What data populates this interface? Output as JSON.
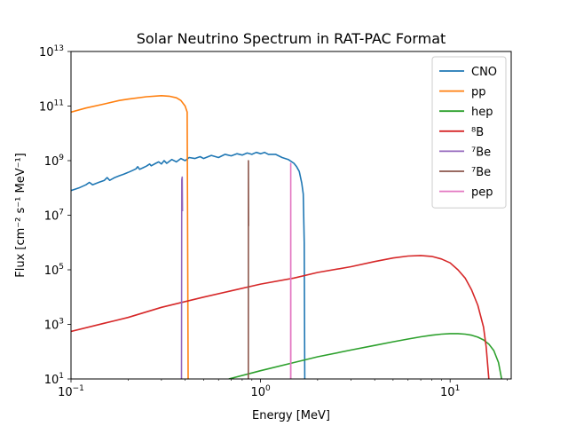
{
  "chart_data": {
    "type": "line",
    "title": "Solar Neutrino Spectrum in RAT-PAC Format",
    "xlabel": "Energy [MeV]",
    "ylabel": "Flux [cm⁻² s⁻¹ MeV⁻¹]",
    "xscale": "log",
    "yscale": "log",
    "xlim": [
      0.1,
      21
    ],
    "ylim": [
      10,
      10000000000000.0
    ],
    "x_ticks": [
      {
        "value": 0.1,
        "base": "10",
        "exp": "−1"
      },
      {
        "value": 1,
        "base": "10",
        "exp": "0"
      },
      {
        "value": 10,
        "base": "10",
        "exp": "1"
      }
    ],
    "y_ticks": [
      {
        "value": 10,
        "base": "10",
        "exp": "1"
      },
      {
        "value": 1000,
        "base": "10",
        "exp": "3"
      },
      {
        "value": 100000,
        "base": "10",
        "exp": "5"
      },
      {
        "value": 10000000,
        "base": "10",
        "exp": "7"
      },
      {
        "value": 1000000000,
        "base": "10",
        "exp": "9"
      },
      {
        "value": 100000000000,
        "base": "10",
        "exp": "11"
      },
      {
        "value": 10000000000000,
        "base": "10",
        "exp": "13"
      }
    ],
    "grid": false,
    "legend_position": "top-right",
    "series": [
      {
        "name": "CNO",
        "color": "#1f77b4",
        "points": [
          [
            0.1,
            80000000.0
          ],
          [
            0.11,
            100000000.0
          ],
          [
            0.12,
            130000000.0
          ],
          [
            0.125,
            160000000.0
          ],
          [
            0.13,
            130000000.0
          ],
          [
            0.14,
            160000000.0
          ],
          [
            0.15,
            190000000.0
          ],
          [
            0.155,
            240000000.0
          ],
          [
            0.16,
            190000000.0
          ],
          [
            0.17,
            240000000.0
          ],
          [
            0.18,
            280000000.0
          ],
          [
            0.19,
            320000000.0
          ],
          [
            0.2,
            370000000.0
          ],
          [
            0.21,
            430000000.0
          ],
          [
            0.22,
            500000000.0
          ],
          [
            0.225,
            600000000.0
          ],
          [
            0.23,
            480000000.0
          ],
          [
            0.24,
            550000000.0
          ],
          [
            0.25,
            630000000.0
          ],
          [
            0.26,
            750000000.0
          ],
          [
            0.265,
            650000000.0
          ],
          [
            0.28,
            800000000.0
          ],
          [
            0.29,
            900000000.0
          ],
          [
            0.3,
            750000000.0
          ],
          [
            0.31,
            1000000000.0
          ],
          [
            0.32,
            800000000.0
          ],
          [
            0.34,
            1100000000.0
          ],
          [
            0.36,
            900000000.0
          ],
          [
            0.38,
            1200000000.0
          ],
          [
            0.4,
            1000000000.0
          ],
          [
            0.42,
            1300000000.0
          ],
          [
            0.45,
            1200000000.0
          ],
          [
            0.48,
            1400000000.0
          ],
          [
            0.5,
            1200000000.0
          ],
          [
            0.55,
            1550000000.0
          ],
          [
            0.6,
            1300000000.0
          ],
          [
            0.65,
            1700000000.0
          ],
          [
            0.7,
            1500000000.0
          ],
          [
            0.75,
            1800000000.0
          ],
          [
            0.8,
            1600000000.0
          ],
          [
            0.85,
            1900000000.0
          ],
          [
            0.9,
            1700000000.0
          ],
          [
            0.95,
            2000000000.0
          ],
          [
            1.0,
            1800000000.0
          ],
          [
            1.05,
            2000000000.0
          ],
          [
            1.1,
            1700000000.0
          ],
          [
            1.2,
            1700000000.0
          ],
          [
            1.3,
            1300000000.0
          ],
          [
            1.4,
            1100000000.0
          ],
          [
            1.5,
            800000000.0
          ],
          [
            1.55,
            600000000.0
          ],
          [
            1.6,
            400000000.0
          ],
          [
            1.65,
            150000000.0
          ],
          [
            1.68,
            60000000.0
          ],
          [
            1.7,
            1000000.0
          ],
          [
            1.71,
            10
          ]
        ]
      },
      {
        "name": "pp",
        "color": "#ff7f0e",
        "points": [
          [
            0.1,
            60000000000.0
          ],
          [
            0.12,
            85000000000.0
          ],
          [
            0.15,
            120000000000.0
          ],
          [
            0.18,
            160000000000.0
          ],
          [
            0.2,
            180000000000.0
          ],
          [
            0.25,
            220000000000.0
          ],
          [
            0.3,
            240000000000.0
          ],
          [
            0.33,
            230000000000.0
          ],
          [
            0.36,
            200000000000.0
          ],
          [
            0.38,
            160000000000.0
          ],
          [
            0.4,
            100000000000.0
          ],
          [
            0.41,
            60000000000.0
          ],
          [
            0.415,
            10
          ]
        ]
      },
      {
        "name": "hep",
        "color": "#2ca02c",
        "points": [
          [
            0.68,
            10
          ],
          [
            1,
            20
          ],
          [
            1.5,
            40
          ],
          [
            2,
            65
          ],
          [
            3,
            115
          ],
          [
            4,
            170
          ],
          [
            5,
            230
          ],
          [
            6,
            290
          ],
          [
            7,
            350
          ],
          [
            8,
            400
          ],
          [
            9,
            440
          ],
          [
            10,
            460
          ],
          [
            11,
            460
          ],
          [
            12,
            440
          ],
          [
            13,
            400
          ],
          [
            14,
            340
          ],
          [
            15,
            270
          ],
          [
            16,
            190
          ],
          [
            17,
            110
          ],
          [
            18,
            40
          ],
          [
            18.7,
            10
          ]
        ]
      },
      {
        "name": "⁸B",
        "color": "#d62728",
        "points": [
          [
            0.1,
            550
          ],
          [
            0.15,
            1100
          ],
          [
            0.2,
            1800
          ],
          [
            0.3,
            4200
          ],
          [
            0.5,
            10000.0
          ],
          [
            0.7,
            17000.0
          ],
          [
            1,
            30000.0
          ],
          [
            1.5,
            50000.0
          ],
          [
            2,
            80000.0
          ],
          [
            3,
            130000.0
          ],
          [
            4,
            200000.0
          ],
          [
            5,
            270000.0
          ],
          [
            6,
            320000.0
          ],
          [
            7,
            335000.0
          ],
          [
            8,
            310000.0
          ],
          [
            9,
            250000.0
          ],
          [
            10,
            180000.0
          ],
          [
            11,
            100000.0
          ],
          [
            12,
            50000.0
          ],
          [
            13,
            18000.0
          ],
          [
            14,
            5000
          ],
          [
            15,
            800
          ],
          [
            15.5,
            150
          ],
          [
            16,
            10
          ]
        ]
      },
      {
        "name": "⁷Be",
        "color": "#9467bd",
        "points": [
          [
            0.3828,
            10
          ],
          [
            0.3838,
            200000000.0
          ],
          [
            0.386,
            250000000.0
          ],
          [
            0.3875,
            14000000.0
          ]
        ]
      },
      {
        "name": "⁷Be",
        "color": "#8c564b",
        "points": [
          [
            0.8615,
            10
          ],
          [
            0.8625,
            1000000000.0
          ],
          [
            0.8645,
            4000000.0
          ]
        ]
      },
      {
        "name": "pep",
        "color": "#e377c2",
        "points": [
          [
            1.441,
            10
          ],
          [
            1.4425,
            800000000.0
          ],
          [
            1.444,
            10
          ]
        ]
      }
    ]
  }
}
